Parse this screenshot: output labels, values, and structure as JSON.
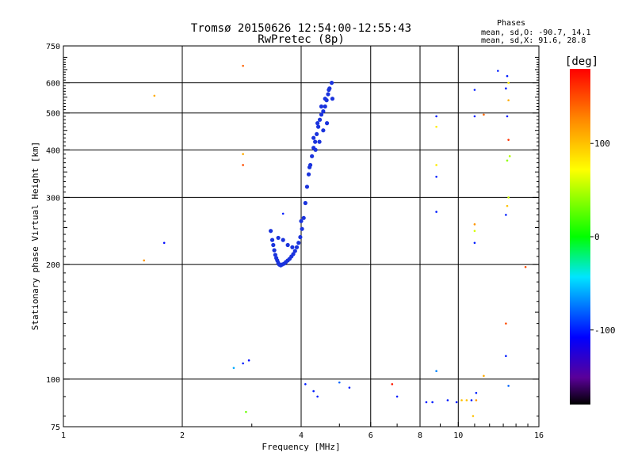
{
  "chart_data": {
    "type": "scatter",
    "title": "Tromsø 20150626 12:54:00-12:55:43",
    "subtitle": "RwPretec (8p)",
    "xlabel": "Frequency [MHz]",
    "ylabel": "Stationary phase Virtual Height [km]",
    "x_scale": "log2",
    "y_scale": "log",
    "xlim": [
      1,
      16
    ],
    "ylim": [
      75,
      750
    ],
    "x_ticks": [
      1,
      2,
      4,
      6,
      8,
      10,
      16
    ],
    "y_ticks": [
      75,
      100,
      200,
      300,
      400,
      500,
      600,
      750
    ],
    "x_ticks_minor": [
      3,
      5,
      7,
      9,
      11,
      12,
      13,
      14,
      15
    ],
    "grid": true,
    "phase_info": {
      "header": "Phases",
      "line_o": "mean, sd,O: -90.7, 14.1",
      "line_x": "mean, sd,X:  91.6, 28.8"
    },
    "colorbar": {
      "label": "[deg]",
      "range": [
        -180,
        180
      ],
      "ticks": [
        100,
        0,
        -100
      ]
    },
    "trace_points": [
      [
        3.35,
        245
      ],
      [
        3.38,
        232
      ],
      [
        3.4,
        225
      ],
      [
        3.42,
        218
      ],
      [
        3.44,
        212
      ],
      [
        3.46,
        208
      ],
      [
        3.48,
        205
      ],
      [
        3.5,
        202
      ],
      [
        3.52,
        200
      ],
      [
        3.55,
        199
      ],
      [
        3.58,
        200
      ],
      [
        3.62,
        201
      ],
      [
        3.66,
        203
      ],
      [
        3.7,
        205
      ],
      [
        3.74,
        207
      ],
      [
        3.78,
        210
      ],
      [
        3.82,
        213
      ],
      [
        3.86,
        217
      ],
      [
        3.9,
        222
      ],
      [
        3.94,
        228
      ],
      [
        3.98,
        236
      ],
      [
        4.02,
        248
      ],
      [
        4.06,
        265
      ],
      [
        4.1,
        290
      ],
      [
        4.14,
        320
      ],
      [
        4.18,
        345
      ],
      [
        4.22,
        365
      ],
      [
        4.26,
        385
      ],
      [
        4.3,
        405
      ],
      [
        4.34,
        420
      ],
      [
        4.38,
        440
      ],
      [
        4.42,
        460
      ],
      [
        4.46,
        480
      ],
      [
        4.5,
        495
      ],
      [
        4.55,
        505
      ],
      [
        4.6,
        520
      ],
      [
        4.64,
        540
      ],
      [
        4.68,
        560
      ],
      [
        4.72,
        580
      ],
      [
        4.78,
        600
      ],
      [
        3.5,
        235
      ],
      [
        3.6,
        232
      ],
      [
        3.7,
        225
      ],
      [
        3.8,
        222
      ],
      [
        4.0,
        260
      ],
      [
        4.2,
        360
      ],
      [
        4.3,
        430
      ],
      [
        4.4,
        470
      ],
      [
        4.5,
        520
      ],
      [
        4.6,
        545
      ],
      [
        4.7,
        575
      ],
      [
        4.8,
        545
      ],
      [
        4.35,
        400
      ],
      [
        4.45,
        420
      ],
      [
        4.55,
        450
      ],
      [
        4.65,
        470
      ]
    ],
    "scatter_points": [
      {
        "f": 1.6,
        "h": 205,
        "phase": 120
      },
      {
        "f": 1.8,
        "h": 228,
        "phase": -105
      },
      {
        "f": 1.7,
        "h": 555,
        "phase": 110
      },
      {
        "f": 2.85,
        "h": 665,
        "phase": 140
      },
      {
        "f": 2.85,
        "h": 390,
        "phase": 110
      },
      {
        "f": 2.85,
        "h": 365,
        "phase": 150
      },
      {
        "f": 2.7,
        "h": 107,
        "phase": -60
      },
      {
        "f": 2.85,
        "h": 110,
        "phase": -100
      },
      {
        "f": 2.95,
        "h": 112,
        "phase": -105
      },
      {
        "f": 2.9,
        "h": 82,
        "phase": 30
      },
      {
        "f": 3.6,
        "h": 272,
        "phase": -100
      },
      {
        "f": 4.1,
        "h": 97,
        "phase": -100
      },
      {
        "f": 4.3,
        "h": 93,
        "phase": -100
      },
      {
        "f": 4.4,
        "h": 90,
        "phase": -100
      },
      {
        "f": 5.0,
        "h": 98,
        "phase": -80
      },
      {
        "f": 5.3,
        "h": 95,
        "phase": -100
      },
      {
        "f": 6.8,
        "h": 97,
        "phase": 170
      },
      {
        "f": 7.0,
        "h": 90,
        "phase": -100
      },
      {
        "f": 8.3,
        "h": 87,
        "phase": -100
      },
      {
        "f": 8.6,
        "h": 87,
        "phase": -100
      },
      {
        "f": 8.8,
        "h": 490,
        "phase": -100
      },
      {
        "f": 8.8,
        "h": 460,
        "phase": 80
      },
      {
        "f": 8.8,
        "h": 365,
        "phase": 80
      },
      {
        "f": 8.8,
        "h": 340,
        "phase": -100
      },
      {
        "f": 8.8,
        "h": 275,
        "phase": -100
      },
      {
        "f": 8.8,
        "h": 105,
        "phase": -70
      },
      {
        "f": 9.4,
        "h": 88,
        "phase": -100
      },
      {
        "f": 9.9,
        "h": 87,
        "phase": -100
      },
      {
        "f": 10.2,
        "h": 88,
        "phase": 100
      },
      {
        "f": 10.5,
        "h": 88,
        "phase": 100
      },
      {
        "f": 10.8,
        "h": 88,
        "phase": -100
      },
      {
        "f": 11.1,
        "h": 88,
        "phase": 120
      },
      {
        "f": 11.1,
        "h": 92,
        "phase": -100
      },
      {
        "f": 11.0,
        "h": 575,
        "phase": -100
      },
      {
        "f": 11.0,
        "h": 490,
        "phase": -100
      },
      {
        "f": 11.0,
        "h": 255,
        "phase": 120
      },
      {
        "f": 11.0,
        "h": 245,
        "phase": 60
      },
      {
        "f": 11.0,
        "h": 228,
        "phase": -100
      },
      {
        "f": 10.9,
        "h": 80,
        "phase": 100
      },
      {
        "f": 11.6,
        "h": 495,
        "phase": 140
      },
      {
        "f": 11.6,
        "h": 102,
        "phase": 110
      },
      {
        "f": 12.6,
        "h": 645,
        "phase": -100
      },
      {
        "f": 13.2,
        "h": 580,
        "phase": -100
      },
      {
        "f": 13.3,
        "h": 625,
        "phase": -100
      },
      {
        "f": 13.4,
        "h": 600,
        "phase": 80
      },
      {
        "f": 13.4,
        "h": 540,
        "phase": 110
      },
      {
        "f": 13.3,
        "h": 490,
        "phase": -100
      },
      {
        "f": 13.4,
        "h": 425,
        "phase": 160
      },
      {
        "f": 13.3,
        "h": 375,
        "phase": 40
      },
      {
        "f": 13.5,
        "h": 385,
        "phase": 50
      },
      {
        "f": 13.4,
        "h": 300,
        "phase": 60
      },
      {
        "f": 13.2,
        "h": 270,
        "phase": -100
      },
      {
        "f": 13.3,
        "h": 285,
        "phase": 100
      },
      {
        "f": 13.2,
        "h": 140,
        "phase": 150
      },
      {
        "f": 13.2,
        "h": 115,
        "phase": -100
      },
      {
        "f": 13.4,
        "h": 96,
        "phase": -80
      },
      {
        "f": 14.8,
        "h": 197,
        "phase": 150
      }
    ]
  }
}
